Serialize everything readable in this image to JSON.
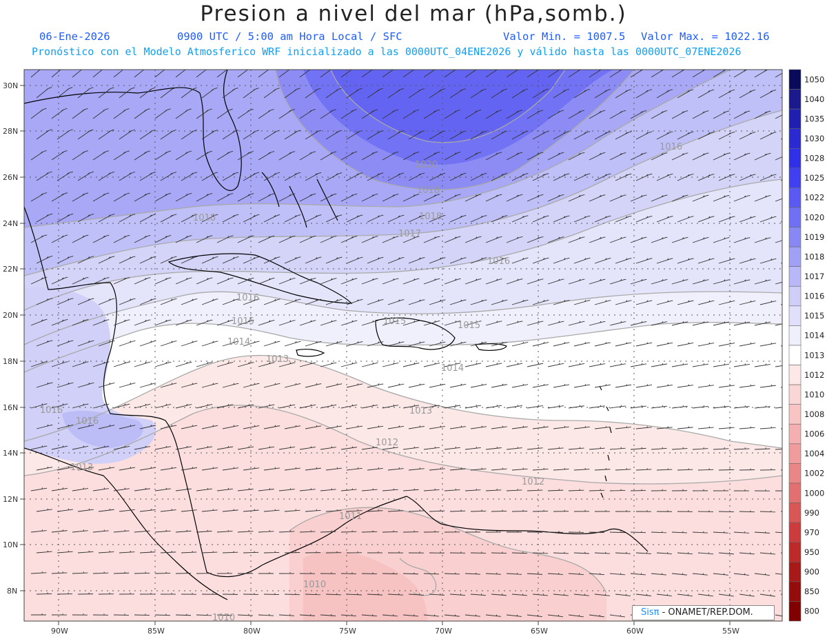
{
  "header": {
    "title": "Presion a nivel del mar (hPa,somb.)",
    "date": "06-Ene-2026",
    "time": "0900 UTC / 5:00 am Hora Local / SFC",
    "min_label": "Valor Min. = 1007.5",
    "max_label": "Valor Max. = 1022.16",
    "model_info": "Pronóstico con el Modelo Atmosferico WRF inicializado a las 0000UTC_04ENE2026 y válido hasta las  0000UTC_07ENE2026"
  },
  "axes": {
    "lat_labels": [
      "30N",
      "28N",
      "26N",
      "24N",
      "22N",
      "20N",
      "18N",
      "16N",
      "14N",
      "12N",
      "10N",
      "8N"
    ],
    "lon_labels": [
      "90W",
      "85W",
      "80W",
      "75W",
      "70W",
      "65W",
      "60W",
      "55W"
    ]
  },
  "colorbar": {
    "labels": [
      "1050",
      "1040",
      "1035",
      "1030",
      "1028",
      "1025",
      "1022",
      "1020",
      "1019",
      "1018",
      "1017",
      "1016",
      "1015",
      "1014",
      "1013",
      "1012",
      "1010",
      "1008",
      "1006",
      "1004",
      "1002",
      "1000",
      "990",
      "970",
      "950",
      "900",
      "850",
      "800"
    ],
    "colors": [
      "#0a0a5a",
      "#1a1a8c",
      "#2020b0",
      "#2a2ad0",
      "#3030e6",
      "#4040f0",
      "#5a5af2",
      "#7070f4",
      "#8888f4",
      "#a0a0f6",
      "#b8b8f8",
      "#ceceF9",
      "#e0e0fb",
      "#f0f0fd",
      "#ffffff",
      "#fde8e8",
      "#fbd6d6",
      "#f8c4c4",
      "#f4b0b0",
      "#f09c9c",
      "#ea8686",
      "#e27070",
      "#d85656",
      "#cc3c3c",
      "#bc2a2a",
      "#a81a1a",
      "#940c0c",
      "#800000"
    ]
  },
  "isobar_labels": [
    "1020",
    "1018",
    "1018",
    "1017",
    "1016",
    "1016",
    "1018",
    "1016",
    "1015",
    "1014",
    "1015",
    "1015",
    "1014",
    "1013",
    "1016",
    "1016",
    "1013",
    "1013",
    "1012",
    "1012",
    "1011",
    "1010",
    "1010"
  ],
  "credit": {
    "brand": "Sisπ",
    "text": "- ONAMET/REP.DOM."
  }
}
